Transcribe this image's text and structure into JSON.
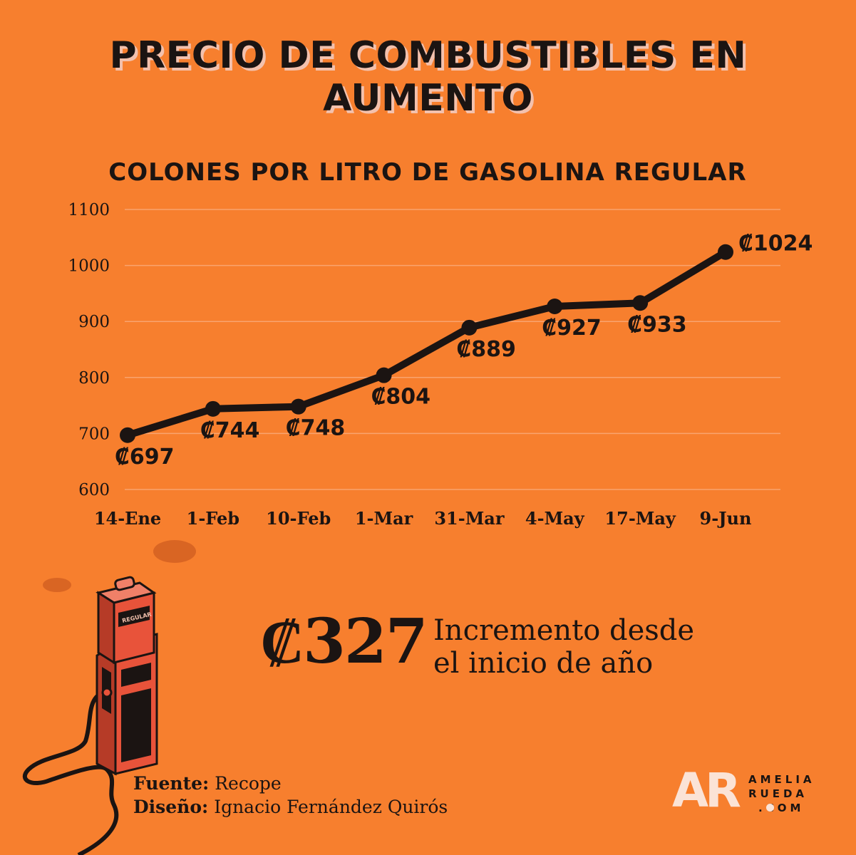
{
  "header": {
    "title": "PRECIO DE COMBUSTIBLES EN AUMENTO"
  },
  "chart_data": {
    "type": "line",
    "title": "COLONES POR LITRO DE GASOLINA REGULAR",
    "xlabel": "",
    "ylabel": "",
    "categories": [
      "14-Ene",
      "1-Feb",
      "10-Feb",
      "1-Mar",
      "31-Mar",
      "4-May",
      "17-May",
      "9-Jun"
    ],
    "values": [
      697,
      744,
      748,
      804,
      889,
      927,
      933,
      1024
    ],
    "data_labels": [
      "₡697",
      "₡744",
      "₡748",
      "₡804",
      "₡889",
      "₡927",
      "₡933",
      "₡1024"
    ],
    "ylim": [
      600,
      1100
    ],
    "yticks": [
      1100,
      1000,
      900,
      800,
      700,
      600
    ],
    "grid": true,
    "legend": "none",
    "line_color": "#1b1412"
  },
  "highlight": {
    "value": "₡327",
    "text_line1": "Incremento desde",
    "text_line2": "el inicio de año"
  },
  "credits": {
    "source_label": "Fuente:",
    "source_value": "Recope",
    "design_label": "Diseño:",
    "design_value": "Ignacio Fernández Quirós"
  },
  "pump": {
    "label": "REGULAR"
  },
  "logo": {
    "mark": "AR",
    "line1": "AMELIA",
    "line2": "RUEDA",
    "line3": ".COM"
  },
  "colors": {
    "background": "#f77f2e",
    "ink": "#1b1412",
    "title_shadow": "#f3c1ad",
    "pump_red": "#e8533a",
    "logo_light": "#fbe3d6"
  }
}
